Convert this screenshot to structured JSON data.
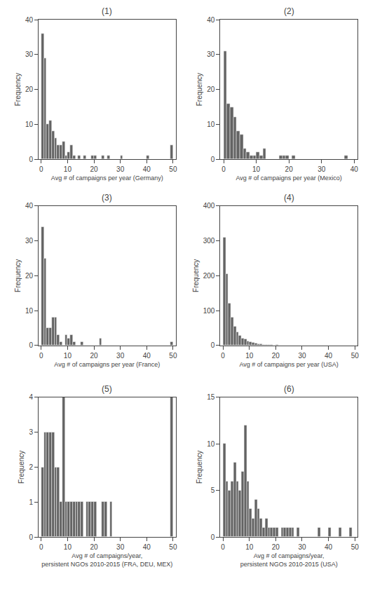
{
  "chart_data": [
    {
      "type": "histogram",
      "title": "(1)",
      "xlabel": "Avg # of campaigns per year (Germany)",
      "ylabel": "Frequency",
      "bins": [
        0,
        1,
        2,
        3,
        4,
        5,
        6,
        7,
        8,
        9,
        10,
        11,
        12,
        13,
        14,
        15,
        16,
        17,
        18,
        19,
        20,
        21,
        22,
        23,
        24,
        25,
        26,
        27,
        28,
        29,
        30,
        31,
        32,
        33,
        34,
        35,
        36,
        37,
        38,
        39,
        40,
        41,
        42,
        43,
        44,
        45,
        46,
        47,
        48,
        49,
        50
      ],
      "values": [
        36,
        29,
        10,
        11,
        8,
        6,
        4,
        4,
        5,
        1,
        2,
        4,
        1,
        0,
        1,
        0,
        1,
        0,
        0,
        1,
        1,
        0,
        0,
        1,
        0,
        1,
        0,
        0,
        0,
        0,
        1,
        0,
        0,
        0,
        0,
        0,
        0,
        0,
        0,
        0,
        1,
        0,
        0,
        0,
        0,
        0,
        0,
        0,
        0,
        4
      ],
      "color": "#636363",
      "xlim": [
        -1,
        51
      ],
      "ylim": [
        0,
        40
      ],
      "xticks": [
        0,
        10,
        20,
        30,
        40,
        50
      ],
      "yticks": [
        0,
        10,
        20,
        30,
        40
      ],
      "grid": false
    },
    {
      "type": "histogram",
      "title": "(2)",
      "xlabel": "Avg # of campaigns per year (Mexico)",
      "ylabel": "Frequency",
      "bins": [
        0,
        1,
        2,
        3,
        4,
        5,
        6,
        7,
        8,
        9,
        10,
        11,
        12,
        13,
        14,
        15,
        16,
        17,
        18,
        19,
        20,
        21,
        22,
        23,
        24,
        25,
        26,
        27,
        28,
        29,
        30,
        31,
        32,
        33,
        34,
        35,
        36,
        37,
        38,
        39,
        40
      ],
      "values": [
        31,
        16,
        15,
        12,
        8,
        7,
        3,
        2,
        1,
        1,
        2,
        1,
        3,
        0,
        0,
        0,
        0,
        1,
        1,
        1,
        0,
        1,
        0,
        0,
        0,
        0,
        0,
        0,
        0,
        0,
        0,
        0,
        0,
        0,
        0,
        0,
        0,
        1,
        0,
        0
      ],
      "color": "#636363",
      "xlim": [
        -1,
        41
      ],
      "ylim": [
        0,
        40
      ],
      "xticks": [
        0,
        10,
        20,
        30,
        40
      ],
      "yticks": [
        0,
        10,
        20,
        30,
        40
      ],
      "grid": false
    },
    {
      "type": "histogram",
      "title": "(3)",
      "xlabel": "Avg # of campaigns per year (France)",
      "ylabel": "Frequency",
      "bins": [
        0,
        1,
        2,
        3,
        4,
        5,
        6,
        7,
        8,
        9,
        10,
        11,
        12,
        13,
        14,
        15,
        16,
        17,
        18,
        19,
        20,
        21,
        22,
        23,
        24,
        25,
        26,
        27,
        28,
        29,
        30,
        31,
        32,
        33,
        34,
        35,
        36,
        37,
        38,
        39,
        40,
        41,
        42,
        43,
        44,
        45,
        46,
        47,
        48,
        49,
        50
      ],
      "values": [
        34,
        25,
        5,
        5,
        8,
        8,
        3,
        1,
        0,
        3,
        2,
        3,
        1,
        0,
        0,
        1,
        0,
        0,
        0,
        0,
        0,
        0,
        2,
        0,
        0,
        0,
        0,
        0,
        0,
        0,
        0,
        0,
        0,
        0,
        0,
        0,
        0,
        0,
        0,
        0,
        0,
        0,
        0,
        0,
        0,
        0,
        0,
        0,
        0,
        1
      ],
      "color": "#636363",
      "xlim": [
        -1,
        51
      ],
      "ylim": [
        0,
        40
      ],
      "xticks": [
        0,
        10,
        20,
        30,
        40,
        50
      ],
      "yticks": [
        0,
        10,
        20,
        30,
        40
      ],
      "grid": false
    },
    {
      "type": "histogram",
      "title": "(4)",
      "xlabel": "Avg # of campaigns per year (USA)",
      "ylabel": "Frequency",
      "bins": [
        0,
        1,
        2,
        3,
        4,
        5,
        6,
        7,
        8,
        9,
        10,
        11,
        12,
        13,
        14,
        15,
        16,
        17,
        18,
        19,
        20,
        21,
        22,
        23,
        24,
        25,
        26,
        27,
        28,
        29,
        30,
        31,
        32,
        33,
        34,
        35,
        36,
        37,
        38,
        39,
        40,
        41,
        42,
        43,
        44,
        45,
        46,
        47,
        48,
        49,
        50
      ],
      "values": [
        310,
        205,
        120,
        80,
        55,
        38,
        28,
        20,
        18,
        12,
        10,
        8,
        6,
        5,
        4,
        3,
        3,
        2,
        2,
        1,
        2,
        1,
        1,
        1,
        1,
        0,
        1,
        0,
        1,
        0,
        1,
        0,
        0,
        0,
        0,
        0,
        0,
        0,
        0,
        0,
        0,
        0,
        0,
        0,
        0,
        0,
        0,
        0,
        0,
        0
      ],
      "color": "#636363",
      "xlim": [
        -1,
        51
      ],
      "ylim": [
        0,
        400
      ],
      "xticks": [
        0,
        10,
        20,
        30,
        40,
        50
      ],
      "yticks": [
        0,
        100,
        200,
        300,
        400
      ],
      "grid": false
    },
    {
      "type": "histogram",
      "title": "(5)",
      "xlabel": "Avg # of campaigns/year,\npersistent NGOs 2010-2015 (FRA, DEU, MEX)",
      "ylabel": "Frequency",
      "bins": [
        0,
        1,
        2,
        3,
        4,
        5,
        6,
        7,
        8,
        9,
        10,
        11,
        12,
        13,
        14,
        15,
        16,
        17,
        18,
        19,
        20,
        21,
        22,
        23,
        24,
        25,
        26,
        27,
        28,
        29,
        30,
        31,
        32,
        33,
        34,
        35,
        36,
        37,
        38,
        39,
        40,
        41,
        42,
        43,
        44,
        45,
        46,
        47,
        48,
        49,
        50
      ],
      "values": [
        2,
        3,
        3,
        3,
        3,
        2,
        2,
        1,
        4,
        1,
        1,
        1,
        1,
        1,
        1,
        1,
        0,
        1,
        1,
        1,
        1,
        0,
        0,
        1,
        1,
        0,
        1,
        0,
        0,
        0,
        0,
        0,
        0,
        0,
        0,
        0,
        0,
        0,
        0,
        0,
        0,
        0,
        0,
        0,
        0,
        0,
        0,
        0,
        0,
        4
      ],
      "color": "#636363",
      "xlim": [
        -1,
        51
      ],
      "ylim": [
        0,
        4
      ],
      "xticks": [
        0,
        10,
        20,
        30,
        40,
        50
      ],
      "yticks": [
        0,
        1,
        2,
        3,
        4
      ],
      "grid": false
    },
    {
      "type": "histogram",
      "title": "(6)",
      "xlabel": "Avg # of campaigns/year,\npersistent NGOs 2010-2015 (USA)",
      "ylabel": "Frequency",
      "bins": [
        0,
        1,
        2,
        3,
        4,
        5,
        6,
        7,
        8,
        9,
        10,
        11,
        12,
        13,
        14,
        15,
        16,
        17,
        18,
        19,
        20,
        21,
        22,
        23,
        24,
        25,
        26,
        27,
        28,
        29,
        30,
        31,
        32,
        33,
        34,
        35,
        36,
        37,
        38,
        39,
        40,
        41,
        42,
        43,
        44,
        45,
        46,
        47,
        48,
        49,
        50
      ],
      "values": [
        10,
        6,
        5,
        6,
        8,
        6,
        5,
        7,
        12,
        6,
        3,
        2,
        4,
        3,
        2,
        1,
        2,
        1,
        1,
        1,
        1,
        0,
        1,
        1,
        1,
        1,
        1,
        0,
        1,
        0,
        0,
        0,
        0,
        0,
        0,
        0,
        1,
        0,
        0,
        0,
        1,
        0,
        0,
        0,
        1,
        0,
        0,
        0,
        1,
        0
      ],
      "color": "#636363",
      "xlim": [
        -1,
        51
      ],
      "ylim": [
        0,
        15
      ],
      "xticks": [
        0,
        10,
        20,
        30,
        40,
        50
      ],
      "yticks": [
        0,
        5,
        10,
        15
      ],
      "grid": false
    }
  ]
}
